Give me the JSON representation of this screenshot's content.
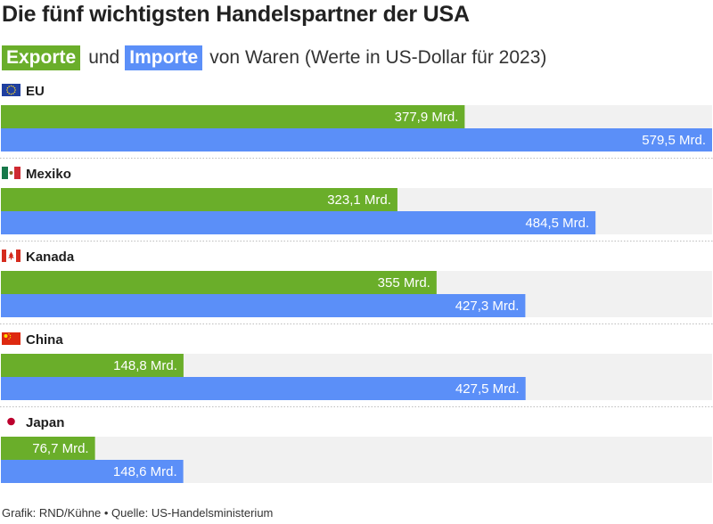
{
  "header": {
    "title": "Die fünf wichtigsten Handelspartner der USA",
    "export_pill": "Exporte",
    "connector": "und",
    "import_pill": "Importe",
    "rest": "von Waren (Werte in US-Dollar für 2023)"
  },
  "footer": {
    "text": "Grafik: RND/Kühne • Quelle: US-Handelsministerium"
  },
  "colors": {
    "exports": "#6aae2a",
    "imports": "#5b8ff8",
    "track": "#f1f1f1"
  },
  "chart_data": {
    "type": "bar",
    "orientation": "horizontal",
    "categories": [
      "EU",
      "Mexiko",
      "Kanada",
      "China",
      "Japan"
    ],
    "flags": [
      "eu-flag-icon",
      "mexico-flag-icon",
      "canada-flag-icon",
      "china-flag-icon",
      "japan-flag-icon"
    ],
    "series": [
      {
        "name": "Exporte",
        "values": [
          377.9,
          323.1,
          355,
          148.8,
          76.7
        ],
        "labels": [
          "377,9 Mrd.",
          "323,1 Mrd.",
          "355 Mrd.",
          "148,8 Mrd.",
          "76,7 Mrd."
        ]
      },
      {
        "name": "Importe",
        "values": [
          579.5,
          484.5,
          427.3,
          427.5,
          148.6
        ],
        "labels": [
          "579,5 Mrd.",
          "484,5 Mrd.",
          "427,3 Mrd.",
          "427,5 Mrd.",
          "148,6 Mrd."
        ]
      }
    ],
    "xlim": [
      0,
      579.5
    ],
    "grid": false,
    "legend": "subtitle"
  }
}
